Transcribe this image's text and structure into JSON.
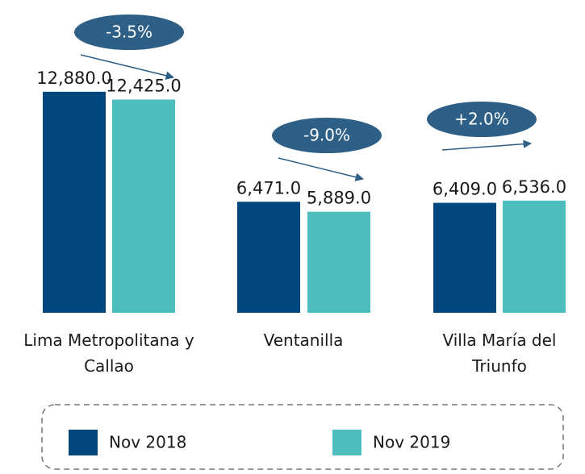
{
  "chart_data": {
    "type": "bar",
    "categories": [
      "Lima Metropolitana y Callao",
      "Ventanilla",
      "Villa María del Triunfo"
    ],
    "series": [
      {
        "name": "Nov 2018",
        "color": "#00467f",
        "values": [
          12880,
          6471,
          6409
        ],
        "value_labels": [
          "12,880.0",
          "6,471.0",
          "6,409.0"
        ]
      },
      {
        "name": "Nov 2019",
        "color": "#4dbdbd",
        "values": [
          12425,
          5889,
          6536
        ],
        "value_labels": [
          "12,425.0",
          "5,889.0",
          "6,536.0"
        ]
      }
    ],
    "annotations": [
      "-3.5%",
      "-9.0%",
      "+2.0%"
    ],
    "ylim": [
      0,
      14000
    ]
  }
}
